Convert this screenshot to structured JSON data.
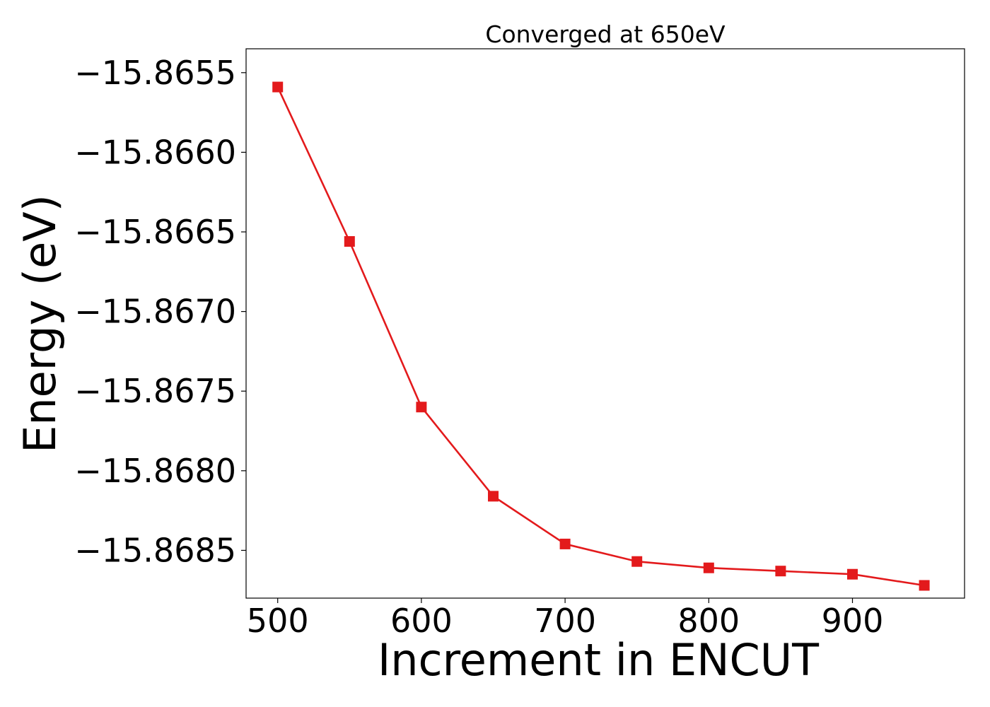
{
  "chart_data": {
    "type": "line",
    "title": "Converged at 650eV",
    "xlabel": "Increment in ENCUT",
    "ylabel": "Energy (eV)",
    "x": [
      500,
      550,
      600,
      650,
      700,
      750,
      800,
      850,
      900,
      950
    ],
    "series": [
      {
        "values": [
          -15.86559,
          -15.86656,
          -15.8676,
          -15.86816,
          -15.86846,
          -15.86857,
          -15.86861,
          -15.86863,
          -15.86865,
          -15.86872
        ],
        "color": "#e31a1c",
        "marker": "square"
      }
    ],
    "xlim": [
      478,
      978
    ],
    "ylim": [
      -15.8688,
      -15.86535
    ],
    "xticks": [
      500,
      600,
      700,
      800,
      900
    ],
    "xtick_labels": [
      "500",
      "600",
      "700",
      "800",
      "900"
    ],
    "yticks": [
      -15.8655,
      -15.866,
      -15.8665,
      -15.867,
      -15.8675,
      -15.868,
      -15.8685
    ],
    "ytick_labels": [
      "−15.8655",
      "−15.8660",
      "−15.8665",
      "−15.8670",
      "−15.8675",
      "−15.8680",
      "−15.8685"
    ],
    "grid": false,
    "legend": "none"
  }
}
